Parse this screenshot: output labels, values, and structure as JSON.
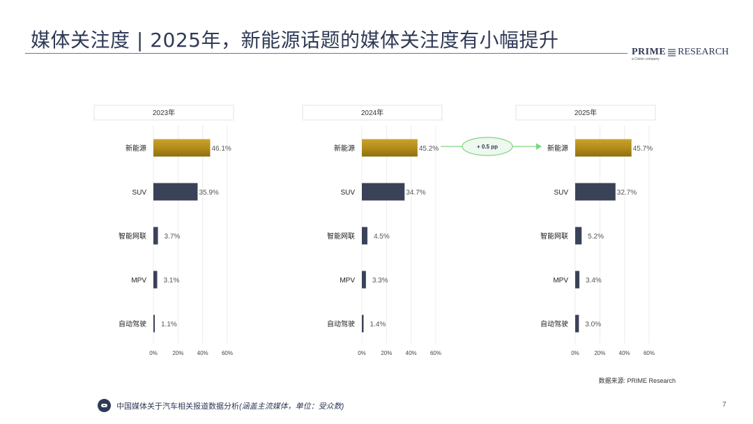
{
  "header": {
    "title": "媒体关注度 | 2025年，新能源话题的媒体关注度有小幅提升",
    "brand_name": "PRIME",
    "brand_name2": "RESEARCH",
    "brand_tagline": "a Cision company"
  },
  "annotation": {
    "label": "+ 0.5 pp"
  },
  "source_note": "数据来源: PRIME Research",
  "footer": {
    "text": "中国媒体关于汽车相关报道数据分析",
    "text_italic": "(涵盖主流媒体，单位：受众数)"
  },
  "page_number": "7",
  "colors": {
    "highlight": "#b8961e",
    "bar": "#3a4258",
    "annotation": "#7fd47f"
  },
  "chart_data": [
    {
      "type": "bar",
      "orientation": "horizontal",
      "title": "2023年",
      "categories": [
        "新能源",
        "SUV",
        "智能网联",
        "MPV",
        "自动驾驶"
      ],
      "values": [
        46.1,
        35.9,
        3.7,
        3.1,
        1.1
      ],
      "labels": [
        "46.1%",
        "35.9%",
        "3.7%",
        "3.1%",
        "1.1%"
      ],
      "xlim": [
        0,
        60
      ],
      "xticks": [
        "0%",
        "20%",
        "40%",
        "60%"
      ],
      "grid": true
    },
    {
      "type": "bar",
      "orientation": "horizontal",
      "title": "2024年",
      "categories": [
        "新能源",
        "SUV",
        "智能网联",
        "MPV",
        "自动驾驶"
      ],
      "values": [
        45.2,
        34.7,
        4.5,
        3.3,
        1.4
      ],
      "labels": [
        "45.2%",
        "34.7%",
        "4.5%",
        "3.3%",
        "1.4%"
      ],
      "xlim": [
        0,
        60
      ],
      "xticks": [
        "0%",
        "20%",
        "40%",
        "60%"
      ],
      "grid": true
    },
    {
      "type": "bar",
      "orientation": "horizontal",
      "title": "2025年",
      "categories": [
        "新能源",
        "SUV",
        "智能网联",
        "MPV",
        "自动驾驶"
      ],
      "values": [
        45.7,
        32.7,
        5.2,
        3.4,
        3.0
      ],
      "labels": [
        "45.7%",
        "32.7%",
        "5.2%",
        "3.4%",
        "3.0%"
      ],
      "xlim": [
        0,
        60
      ],
      "xticks": [
        "0%",
        "20%",
        "40%",
        "60%"
      ],
      "grid": true
    }
  ]
}
